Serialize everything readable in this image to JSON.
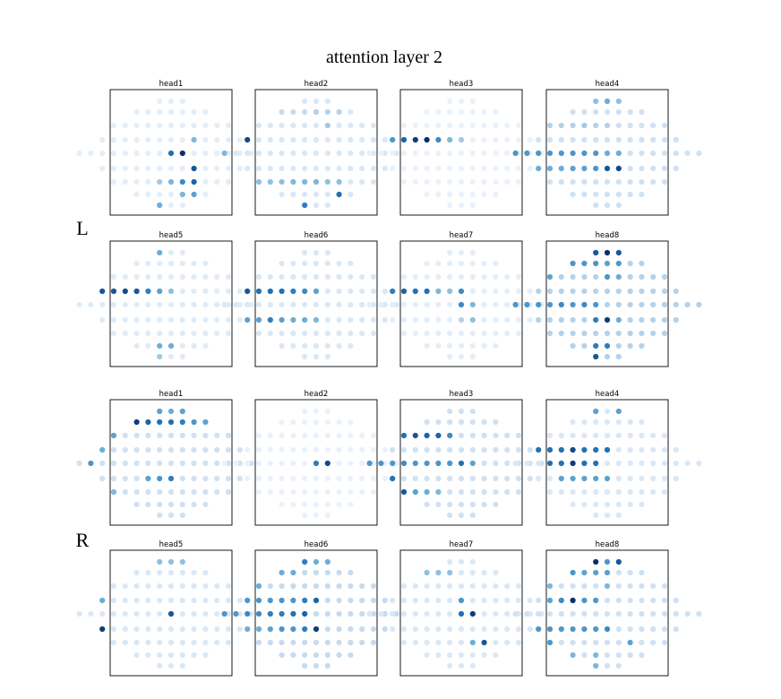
{
  "figure": {
    "title": "attention layer 2",
    "groups": [
      {
        "label": "L"
      },
      {
        "label": "R"
      }
    ]
  },
  "chart_data": [
    {
      "type": "scatter",
      "group": "L",
      "title": "head1",
      "hot": [
        [
          4,
          9,
          1.0
        ],
        [
          4,
          8,
          0.75
        ],
        [
          5,
          8,
          0.85
        ],
        [
          6,
          7,
          0.8
        ],
        [
          6,
          6,
          0.65
        ],
        [
          3,
          8,
          0.45
        ],
        [
          6,
          5,
          0.45
        ],
        [
          6,
          4,
          0.35
        ],
        [
          7,
          5,
          0.55
        ],
        [
          7,
          4,
          0.45
        ],
        [
          8,
          0,
          0.5
        ]
      ],
      "base": 0.1
    },
    {
      "type": "scatter",
      "group": "L",
      "title": "head2",
      "hot": [
        [
          3,
          0,
          0.9
        ],
        [
          4,
          0,
          0.45
        ],
        [
          6,
          0,
          0.4
        ],
        [
          6,
          1,
          0.4
        ],
        [
          6,
          2,
          0.4
        ],
        [
          6,
          3,
          0.45
        ],
        [
          6,
          4,
          0.45
        ],
        [
          6,
          5,
          0.45
        ],
        [
          6,
          6,
          0.4
        ],
        [
          6,
          7,
          0.4
        ],
        [
          7,
          5,
          0.75
        ],
        [
          8,
          0,
          0.7
        ],
        [
          1,
          0,
          0.25
        ],
        [
          1,
          1,
          0.25
        ],
        [
          1,
          2,
          0.25
        ],
        [
          1,
          3,
          0.3
        ],
        [
          1,
          4,
          0.3
        ],
        [
          1,
          5,
          0.3
        ],
        [
          2,
          6,
          0.35
        ]
      ],
      "base": 0.15
    },
    {
      "type": "scatter",
      "group": "L",
      "title": "head3",
      "hot": [
        [
          3,
          0,
          0.6
        ],
        [
          3,
          1,
          0.8
        ],
        [
          3,
          2,
          0.95
        ],
        [
          3,
          3,
          1.0
        ],
        [
          3,
          4,
          0.65
        ],
        [
          3,
          5,
          0.45
        ],
        [
          3,
          6,
          0.35
        ]
      ],
      "base": 0.07
    },
    {
      "type": "scatter",
      "group": "L",
      "title": "head4",
      "hot": [
        [
          4,
          0,
          0.6
        ],
        [
          4,
          1,
          0.6
        ],
        [
          4,
          2,
          0.6
        ],
        [
          4,
          3,
          0.6
        ],
        [
          4,
          4,
          0.6
        ],
        [
          4,
          5,
          0.6
        ],
        [
          4,
          6,
          0.6
        ],
        [
          4,
          7,
          0.6
        ],
        [
          4,
          8,
          0.5
        ],
        [
          4,
          9,
          0.5
        ],
        [
          5,
          0,
          0.5
        ],
        [
          5,
          1,
          0.5
        ],
        [
          5,
          2,
          0.5
        ],
        [
          5,
          3,
          0.55
        ],
        [
          5,
          4,
          0.55
        ],
        [
          5,
          5,
          0.6
        ],
        [
          5,
          6,
          0.85
        ],
        [
          5,
          7,
          0.9
        ],
        [
          2,
          0,
          0.3
        ],
        [
          2,
          1,
          0.3
        ],
        [
          2,
          2,
          0.3
        ],
        [
          2,
          3,
          0.35
        ],
        [
          2,
          4,
          0.3
        ],
        [
          2,
          5,
          0.3
        ],
        [
          0,
          0,
          0.4
        ],
        [
          0,
          1,
          0.5
        ],
        [
          0,
          2,
          0.4
        ]
      ],
      "base": 0.2
    },
    {
      "type": "scatter",
      "group": "L",
      "title": "head5",
      "hot": [
        [
          3,
          0,
          0.85
        ],
        [
          3,
          1,
          0.85
        ],
        [
          3,
          2,
          0.9
        ],
        [
          3,
          3,
          0.85
        ],
        [
          3,
          4,
          0.7
        ],
        [
          3,
          5,
          0.55
        ],
        [
          3,
          6,
          0.4
        ],
        [
          0,
          0,
          0.5
        ],
        [
          7,
          2,
          0.5
        ],
        [
          7,
          3,
          0.5
        ],
        [
          8,
          0,
          0.35
        ]
      ],
      "base": 0.12
    },
    {
      "type": "scatter",
      "group": "L",
      "title": "head6",
      "hot": [
        [
          3,
          0,
          0.85
        ],
        [
          3,
          1,
          0.75
        ],
        [
          3,
          2,
          0.75
        ],
        [
          3,
          3,
          0.75
        ],
        [
          3,
          4,
          0.7
        ],
        [
          3,
          5,
          0.65
        ],
        [
          3,
          6,
          0.55
        ],
        [
          5,
          0,
          0.55
        ],
        [
          5,
          1,
          0.55
        ],
        [
          5,
          2,
          0.7
        ],
        [
          5,
          3,
          0.55
        ],
        [
          5,
          4,
          0.5
        ],
        [
          5,
          5,
          0.5
        ],
        [
          5,
          6,
          0.45
        ]
      ],
      "base": 0.15
    },
    {
      "type": "scatter",
      "group": "L",
      "title": "head7",
      "hot": [
        [
          3,
          0,
          0.7
        ],
        [
          3,
          1,
          0.8
        ],
        [
          3,
          2,
          0.75
        ],
        [
          3,
          3,
          0.75
        ],
        [
          3,
          4,
          0.45
        ],
        [
          3,
          5,
          0.4
        ],
        [
          3,
          6,
          0.65
        ],
        [
          4,
          8,
          0.65
        ],
        [
          4,
          9,
          0.45
        ],
        [
          5,
          7,
          0.4
        ],
        [
          5,
          6,
          0.3
        ]
      ],
      "base": 0.1
    },
    {
      "type": "scatter",
      "group": "L",
      "title": "head8",
      "hot": [
        [
          0,
          0,
          0.85
        ],
        [
          0,
          1,
          1.0
        ],
        [
          0,
          2,
          0.85
        ],
        [
          1,
          0,
          0.6
        ],
        [
          1,
          1,
          0.6
        ],
        [
          1,
          2,
          0.6
        ],
        [
          1,
          3,
          0.55
        ],
        [
          1,
          4,
          0.6
        ],
        [
          2,
          0,
          0.55
        ],
        [
          2,
          5,
          0.6
        ],
        [
          2,
          6,
          0.5
        ],
        [
          4,
          0,
          0.6
        ],
        [
          4,
          1,
          0.6
        ],
        [
          4,
          2,
          0.6
        ],
        [
          4,
          3,
          0.6
        ],
        [
          4,
          4,
          0.65
        ],
        [
          4,
          5,
          0.6
        ],
        [
          4,
          6,
          0.65
        ],
        [
          4,
          7,
          0.6
        ],
        [
          5,
          6,
          0.95
        ],
        [
          5,
          5,
          0.7
        ],
        [
          5,
          7,
          0.5
        ],
        [
          7,
          2,
          0.7
        ],
        [
          7,
          3,
          0.7
        ],
        [
          8,
          0,
          0.85
        ]
      ],
      "base": 0.3
    },
    {
      "type": "scatter",
      "group": "R",
      "title": "head1",
      "hot": [
        [
          1,
          0,
          0.95
        ],
        [
          1,
          1,
          0.8
        ],
        [
          1,
          2,
          0.75
        ],
        [
          1,
          3,
          0.75
        ],
        [
          1,
          4,
          0.7
        ],
        [
          1,
          5,
          0.6
        ],
        [
          1,
          6,
          0.55
        ],
        [
          0,
          0,
          0.55
        ],
        [
          0,
          1,
          0.5
        ],
        [
          0,
          2,
          0.55
        ],
        [
          2,
          0,
          0.55
        ],
        [
          3,
          0,
          0.5
        ],
        [
          4,
          1,
          0.6
        ],
        [
          5,
          5,
          0.6
        ],
        [
          5,
          6,
          0.7
        ],
        [
          5,
          4,
          0.55
        ],
        [
          6,
          0,
          0.45
        ]
      ],
      "base": 0.2
    },
    {
      "type": "scatter",
      "group": "R",
      "title": "head2",
      "hot": [
        [
          4,
          8,
          0.7
        ],
        [
          4,
          9,
          0.9
        ]
      ],
      "base": 0.07
    },
    {
      "type": "scatter",
      "group": "R",
      "title": "head3",
      "hot": [
        [
          2,
          0,
          0.75
        ],
        [
          2,
          1,
          0.85
        ],
        [
          2,
          2,
          0.8
        ],
        [
          2,
          3,
          0.8
        ],
        [
          2,
          4,
          0.65
        ],
        [
          4,
          0,
          0.6
        ],
        [
          4,
          1,
          0.6
        ],
        [
          4,
          2,
          0.6
        ],
        [
          4,
          3,
          0.65
        ],
        [
          4,
          4,
          0.6
        ],
        [
          4,
          5,
          0.6
        ],
        [
          4,
          6,
          0.6
        ],
        [
          4,
          7,
          0.6
        ],
        [
          4,
          8,
          0.75
        ],
        [
          4,
          9,
          0.55
        ],
        [
          5,
          0,
          0.75
        ],
        [
          6,
          0,
          0.85
        ],
        [
          6,
          1,
          0.55
        ],
        [
          6,
          2,
          0.5
        ],
        [
          6,
          3,
          0.45
        ]
      ],
      "base": 0.2
    },
    {
      "type": "scatter",
      "group": "R",
      "title": "head4",
      "hot": [
        [
          3,
          0,
          0.75
        ],
        [
          3,
          1,
          0.75
        ],
        [
          3,
          2,
          0.75
        ],
        [
          3,
          3,
          0.9
        ],
        [
          3,
          4,
          0.75
        ],
        [
          3,
          5,
          0.75
        ],
        [
          3,
          6,
          0.75
        ],
        [
          4,
          3,
          0.75
        ],
        [
          4,
          4,
          0.75
        ],
        [
          4,
          5,
          0.95
        ],
        [
          4,
          6,
          0.75
        ],
        [
          4,
          7,
          0.75
        ],
        [
          5,
          2,
          0.55
        ],
        [
          5,
          3,
          0.55
        ],
        [
          5,
          4,
          0.55
        ],
        [
          5,
          5,
          0.55
        ],
        [
          5,
          6,
          0.55
        ],
        [
          0,
          0,
          0.55
        ],
        [
          0,
          2,
          0.55
        ]
      ],
      "base": 0.15
    },
    {
      "type": "scatter",
      "group": "R",
      "title": "head5",
      "hot": [
        [
          4,
          8,
          0.85
        ],
        [
          5,
          0,
          0.95
        ],
        [
          3,
          0,
          0.5
        ],
        [
          0,
          0,
          0.4
        ],
        [
          0,
          1,
          0.4
        ],
        [
          0,
          2,
          0.4
        ]
      ],
      "base": 0.15
    },
    {
      "type": "scatter",
      "group": "R",
      "title": "head6",
      "hot": [
        [
          0,
          0,
          0.7
        ],
        [
          0,
          1,
          0.5
        ],
        [
          0,
          2,
          0.5
        ],
        [
          1,
          0,
          0.5
        ],
        [
          1,
          1,
          0.5
        ],
        [
          2,
          0,
          0.5
        ],
        [
          3,
          0,
          0.6
        ],
        [
          3,
          1,
          0.6
        ],
        [
          3,
          2,
          0.6
        ],
        [
          3,
          3,
          0.6
        ],
        [
          3,
          4,
          0.6
        ],
        [
          3,
          5,
          0.7
        ],
        [
          3,
          6,
          0.8
        ],
        [
          4,
          0,
          0.6
        ],
        [
          4,
          1,
          0.6
        ],
        [
          4,
          2,
          0.65
        ],
        [
          4,
          3,
          0.65
        ],
        [
          4,
          4,
          0.7
        ],
        [
          4,
          5,
          0.7
        ],
        [
          4,
          6,
          0.75
        ],
        [
          4,
          7,
          0.8
        ],
        [
          5,
          0,
          0.5
        ],
        [
          5,
          1,
          0.5
        ],
        [
          5,
          2,
          0.55
        ],
        [
          5,
          3,
          0.6
        ],
        [
          5,
          4,
          0.6
        ],
        [
          5,
          5,
          0.7
        ],
        [
          5,
          6,
          0.95
        ]
      ],
      "base": 0.25
    },
    {
      "type": "scatter",
      "group": "R",
      "title": "head7",
      "hot": [
        [
          4,
          8,
          0.75
        ],
        [
          4,
          9,
          0.95
        ],
        [
          3,
          6,
          0.6
        ],
        [
          6,
          7,
          0.85
        ],
        [
          6,
          6,
          0.5
        ],
        [
          1,
          0,
          0.4
        ],
        [
          1,
          1,
          0.4
        ],
        [
          1,
          2,
          0.4
        ]
      ],
      "base": 0.15
    },
    {
      "type": "scatter",
      "group": "R",
      "title": "head8",
      "hot": [
        [
          0,
          0,
          1.0
        ],
        [
          0,
          1,
          0.6
        ],
        [
          0,
          2,
          0.85
        ],
        [
          1,
          0,
          0.6
        ],
        [
          1,
          1,
          0.55
        ],
        [
          1,
          2,
          0.55
        ],
        [
          1,
          3,
          0.55
        ],
        [
          3,
          3,
          1.0
        ],
        [
          3,
          2,
          0.65
        ],
        [
          3,
          1,
          0.55
        ],
        [
          3,
          4,
          0.6
        ],
        [
          3,
          5,
          0.6
        ],
        [
          5,
          0,
          0.6
        ],
        [
          5,
          1,
          0.6
        ],
        [
          5,
          2,
          0.6
        ],
        [
          5,
          3,
          0.6
        ],
        [
          5,
          4,
          0.6
        ],
        [
          5,
          5,
          0.6
        ],
        [
          5,
          6,
          0.65
        ],
        [
          6,
          0,
          0.6
        ],
        [
          6,
          7,
          0.55
        ],
        [
          2,
          0,
          0.45
        ],
        [
          2,
          5,
          0.45
        ],
        [
          7,
          0,
          0.45
        ],
        [
          7,
          2,
          0.45
        ],
        [
          8,
          0,
          0.45
        ]
      ],
      "base": 0.2
    }
  ]
}
